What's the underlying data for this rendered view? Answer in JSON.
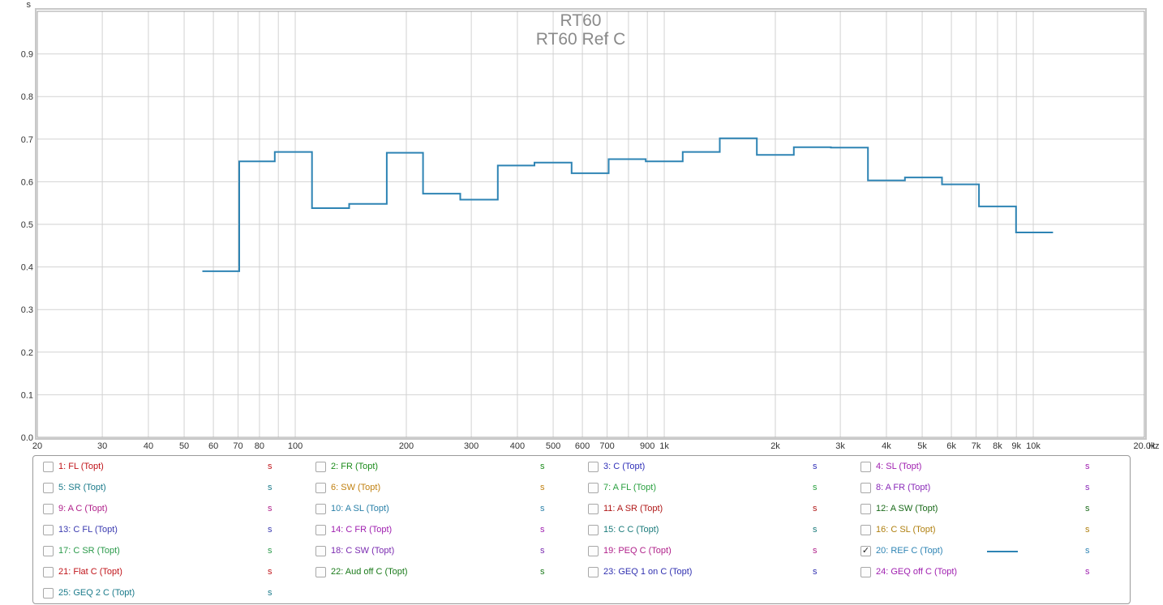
{
  "chart_data": {
    "type": "line",
    "step": true,
    "title": "RT60",
    "subtitle": "RT60 Ref C",
    "y_unit_label": "s",
    "x_unit_label": "Hz",
    "xscale": "log",
    "xlim": [
      20,
      20000
    ],
    "ylim": [
      0,
      1.0
    ],
    "grid": true,
    "x_major_ticks": [
      20,
      30,
      40,
      50,
      60,
      70,
      80,
      100,
      200,
      300,
      400,
      500,
      600,
      700,
      900,
      1000,
      2000,
      3000,
      4000,
      5000,
      6000,
      7000,
      8000,
      9000,
      10000,
      20000
    ],
    "x_tick_labels": [
      "20",
      "30",
      "40",
      "50",
      "60",
      "70",
      "80",
      "100",
      "200",
      "300",
      "400",
      "500",
      "600",
      "700",
      "900",
      "1k",
      "2k",
      "3k",
      "4k",
      "5k",
      "6k",
      "7k",
      "8k",
      "9k",
      "10k",
      "20.0k"
    ],
    "x_minor_grid": [
      90,
      800
    ],
    "y_ticks": [
      0,
      0.1,
      0.2,
      0.3,
      0.4,
      0.5,
      0.6,
      0.7,
      0.8,
      0.9
    ],
    "y_tick_labels": [
      "0.0",
      "0.1",
      "0.2",
      "0.3",
      "0.4",
      "0.5",
      "0.6",
      "0.7",
      "0.8",
      "0.9"
    ],
    "series": [
      {
        "name": "20: REF C (Topt)",
        "color": "#2e84b4",
        "bands": [
          {
            "f_lo": 56,
            "f_hi": 70.5,
            "rt60": 0.39
          },
          {
            "f_lo": 70.5,
            "f_hi": 88,
            "rt60": 0.648
          },
          {
            "f_lo": 88,
            "f_hi": 111,
            "rt60": 0.67
          },
          {
            "f_lo": 111,
            "f_hi": 140,
            "rt60": 0.538
          },
          {
            "f_lo": 140,
            "f_hi": 177,
            "rt60": 0.548
          },
          {
            "f_lo": 177,
            "f_hi": 222,
            "rt60": 0.668
          },
          {
            "f_lo": 222,
            "f_hi": 280,
            "rt60": 0.572
          },
          {
            "f_lo": 280,
            "f_hi": 354,
            "rt60": 0.558
          },
          {
            "f_lo": 354,
            "f_hi": 445,
            "rt60": 0.638
          },
          {
            "f_lo": 445,
            "f_hi": 561,
            "rt60": 0.645
          },
          {
            "f_lo": 561,
            "f_hi": 707,
            "rt60": 0.62
          },
          {
            "f_lo": 707,
            "f_hi": 891,
            "rt60": 0.653
          },
          {
            "f_lo": 891,
            "f_hi": 1122,
            "rt60": 0.648
          },
          {
            "f_lo": 1122,
            "f_hi": 1414,
            "rt60": 0.67
          },
          {
            "f_lo": 1414,
            "f_hi": 1782,
            "rt60": 0.702
          },
          {
            "f_lo": 1782,
            "f_hi": 2245,
            "rt60": 0.663
          },
          {
            "f_lo": 2245,
            "f_hi": 2828,
            "rt60": 0.681
          },
          {
            "f_lo": 2828,
            "f_hi": 3564,
            "rt60": 0.68
          },
          {
            "f_lo": 3564,
            "f_hi": 4490,
            "rt60": 0.603
          },
          {
            "f_lo": 4490,
            "f_hi": 5657,
            "rt60": 0.61
          },
          {
            "f_lo": 5657,
            "f_hi": 7127,
            "rt60": 0.594
          },
          {
            "f_lo": 7127,
            "f_hi": 8980,
            "rt60": 0.542
          },
          {
            "f_lo": 8980,
            "f_hi": 11314,
            "rt60": 0.481
          }
        ]
      }
    ]
  },
  "legend": {
    "items": [
      {
        "label": "1: FL (Topt)",
        "unit": "s",
        "color": "#c0141a",
        "checked": false
      },
      {
        "label": "2: FR (Topt)",
        "unit": "s",
        "color": "#1a8a1a",
        "checked": false
      },
      {
        "label": "3: C (Topt)",
        "unit": "s",
        "color": "#3030b8",
        "checked": false
      },
      {
        "label": "4: SL (Topt)",
        "unit": "s",
        "color": "#a020b0",
        "checked": false
      },
      {
        "label": "5: SR (Topt)",
        "unit": "s",
        "color": "#1a7a8a",
        "checked": false
      },
      {
        "label": "6: SW (Topt)",
        "unit": "s",
        "color": "#c08010",
        "checked": false
      },
      {
        "label": "7: A FL (Topt)",
        "unit": "s",
        "color": "#2aa040",
        "checked": false
      },
      {
        "label": "8: A FR (Topt)",
        "unit": "s",
        "color": "#8a2ab8",
        "checked": false
      },
      {
        "label": "9: A C (Topt)",
        "unit": "s",
        "color": "#b0208a",
        "checked": false
      },
      {
        "label": "10: A SL (Topt)",
        "unit": "s",
        "color": "#2a80a8",
        "checked": false
      },
      {
        "label": "11: A SR (Topt)",
        "unit": "s",
        "color": "#b01818",
        "checked": false
      },
      {
        "label": "12: A SW (Topt)",
        "unit": "s",
        "color": "#1a6a1a",
        "checked": false
      },
      {
        "label": "13: C FL (Topt)",
        "unit": "s",
        "color": "#3a3ab0",
        "checked": false
      },
      {
        "label": "14: C FR (Topt)",
        "unit": "s",
        "color": "#a020b0",
        "checked": false
      },
      {
        "label": "15: C C (Topt)",
        "unit": "s",
        "color": "#1a7a7a",
        "checked": false
      },
      {
        "label": "16: C SL (Topt)",
        "unit": "s",
        "color": "#b08010",
        "checked": false
      },
      {
        "label": "17: C SR (Topt)",
        "unit": "s",
        "color": "#2a9a4a",
        "checked": false
      },
      {
        "label": "18: C SW (Topt)",
        "unit": "s",
        "color": "#7a2ab0",
        "checked": false
      },
      {
        "label": "19: PEQ C (Topt)",
        "unit": "s",
        "color": "#b0208a",
        "checked": false
      },
      {
        "label": "20: REF C (Topt)",
        "unit": "s",
        "color": "#2e84b4",
        "checked": true
      },
      {
        "label": "21: Flat C (Topt)",
        "unit": "s",
        "color": "#c0141a",
        "checked": false
      },
      {
        "label": "22: Aud off C (Topt)",
        "unit": "s",
        "color": "#1a7a1a",
        "checked": false
      },
      {
        "label": "23: GEQ 1 on C (Topt)",
        "unit": "s",
        "color": "#3030b0",
        "checked": false
      },
      {
        "label": "24: GEQ off C (Topt)",
        "unit": "s",
        "color": "#a020b0",
        "checked": false
      },
      {
        "label": "25: GEQ 2 C (Topt)",
        "unit": "s",
        "color": "#1a7a8a",
        "checked": false
      }
    ]
  }
}
